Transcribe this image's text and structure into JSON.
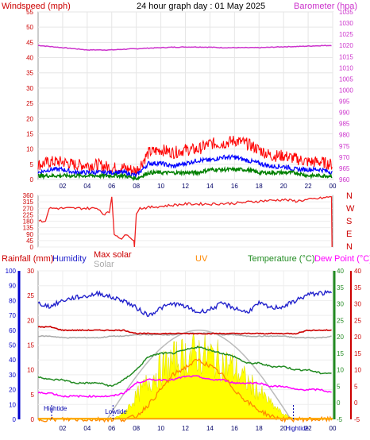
{
  "title": "24 hour graph day : 01 May 2025",
  "colors": {
    "wind": "#ff0000",
    "gust": "#0000ff",
    "avg": "#008000",
    "baro": "#cc33cc",
    "dir": "#ee2222",
    "rain": "#0000cc",
    "humidity": "#2222cc",
    "maxsolar": "#bbbbbb",
    "solar": "#ffff00",
    "uv": "#ff8800",
    "temp": "#228b22",
    "dew": "#ff00ff",
    "apptemp": "#cc0000"
  },
  "chart_data": [
    {
      "type": "line",
      "name": "wind-baro",
      "left_label": "Windspeed (mph)",
      "right_label": "Barometer (hpa)",
      "x_ticks": [
        "02",
        "04",
        "06",
        "08",
        "10",
        "12",
        "14",
        "16",
        "18",
        "20",
        "22",
        "00"
      ],
      "y_left": {
        "min": 0,
        "max": 55,
        "ticks": [
          0,
          5,
          10,
          15,
          20,
          25,
          30,
          35,
          40,
          45,
          50,
          55
        ]
      },
      "y_right": {
        "min": 960,
        "max": 1035,
        "ticks": [
          960,
          965,
          970,
          975,
          980,
          985,
          990,
          995,
          1000,
          1005,
          1010,
          1015,
          1020,
          1025,
          1030,
          1035
        ]
      },
      "hours": [
        0,
        1,
        2,
        3,
        4,
        5,
        6,
        7,
        8,
        9,
        10,
        11,
        12,
        13,
        14,
        15,
        16,
        17,
        18,
        19,
        20,
        21,
        22,
        23,
        24
      ],
      "gust_mph": [
        4,
        5,
        5,
        4,
        4,
        4,
        3,
        3,
        2,
        8,
        9,
        8,
        9,
        9,
        11,
        11,
        12,
        11,
        9,
        7,
        7,
        6,
        5,
        5,
        4
      ],
      "wind_mph": [
        2,
        3,
        3,
        2,
        2,
        2,
        2,
        2,
        1,
        5,
        5,
        4,
        5,
        6,
        6,
        7,
        7,
        6,
        5,
        4,
        4,
        3,
        3,
        3,
        2
      ],
      "avg_mph": [
        1,
        1,
        1,
        1,
        1,
        1,
        1,
        1,
        0,
        2,
        2,
        2,
        2,
        2,
        3,
        3,
        3,
        3,
        2,
        2,
        2,
        2,
        1,
        1,
        1
      ],
      "barometer_hpa": [
        1020.0,
        1019.5,
        1019.0,
        1018.5,
        1018.0,
        1018.0,
        1018.0,
        1018.3,
        1018.5,
        1018.8,
        1019.0,
        1019.2,
        1019.3,
        1019.3,
        1019.2,
        1019.0,
        1019.0,
        1019.0,
        1019.0,
        1019.2,
        1019.4,
        1019.5,
        1019.7,
        1019.9,
        1020.0
      ]
    },
    {
      "type": "line",
      "name": "wind-direction",
      "right_labels": [
        "N",
        "W",
        "S",
        "E",
        "N"
      ],
      "y_ticks": [
        0,
        45,
        90,
        135,
        180,
        225,
        270,
        315,
        360
      ],
      "direction_points": [
        [
          0.05,
          180
        ],
        [
          0.6,
          180
        ],
        [
          0.9,
          270
        ],
        [
          4.9,
          270
        ],
        [
          5.3,
          230
        ],
        [
          5.8,
          240
        ],
        [
          6.0,
          350
        ],
        [
          6.2,
          90
        ],
        [
          6.8,
          60
        ],
        [
          7.3,
          90
        ],
        [
          7.8,
          45
        ],
        [
          7.85,
          0
        ],
        [
          8.0,
          230
        ],
        [
          8.3,
          270
        ],
        [
          9.5,
          280
        ],
        [
          12,
          300
        ],
        [
          14,
          300
        ],
        [
          16,
          305
        ],
        [
          18,
          320
        ],
        [
          20,
          330
        ],
        [
          21,
          320
        ],
        [
          22,
          330
        ],
        [
          23,
          340
        ],
        [
          23.9,
          350
        ],
        [
          23.95,
          0
        ]
      ]
    },
    {
      "type": "line",
      "name": "temp-humidity-solar",
      "labels": {
        "rain": "Rainfall (mm)",
        "humidity": "Humidity",
        "maxsolar": "Max solar",
        "solar": "Solar",
        "uv": "UV",
        "temp": "Temperature (°C)",
        "dew": "Dew Point (°C)"
      },
      "x_ticks": [
        "02",
        "04",
        "06",
        "08",
        "10",
        "12",
        "14",
        "16",
        "18",
        "20",
        "22",
        "00"
      ],
      "humidity_axis": {
        "min": 0,
        "max": 100,
        "ticks": [
          0,
          10,
          20,
          30,
          40,
          50,
          60,
          70,
          80,
          90,
          100
        ]
      },
      "rain_axis": {
        "min": 0,
        "max": 30,
        "ticks": [
          0,
          5,
          10,
          15,
          20,
          25,
          30
        ]
      },
      "temp_axis": {
        "min": -5,
        "max": 40,
        "ticks": [
          -5,
          0,
          5,
          10,
          15,
          20,
          25,
          30,
          35,
          40
        ]
      },
      "tide_labels": {
        "high1": "Hightide",
        "low": "Lowtide",
        "high2": "Hightide"
      },
      "tide_hours": {
        "high1": 1.1,
        "low": 6.1,
        "high2": 20.8
      },
      "hours": [
        0,
        1,
        2,
        3,
        4,
        5,
        6,
        7,
        8,
        9,
        10,
        11,
        12,
        13,
        14,
        15,
        16,
        17,
        18,
        19,
        20,
        21,
        22,
        23,
        24
      ],
      "humidity_pct": [
        78,
        76,
        80,
        82,
        83,
        85,
        82,
        80,
        75,
        70,
        75,
        78,
        76,
        72,
        74,
        78,
        75,
        72,
        78,
        75,
        76,
        80,
        84,
        85,
        85
      ],
      "temp_c": [
        8,
        7,
        7,
        6,
        6,
        6,
        5,
        7,
        10,
        14,
        15,
        15,
        16,
        17,
        16,
        15,
        14,
        12,
        12,
        11,
        11,
        10,
        10,
        9,
        9
      ],
      "dew_c": [
        3,
        3,
        2,
        2,
        2,
        2,
        2,
        3,
        6,
        7,
        7,
        7,
        8,
        8,
        7,
        7,
        6,
        6,
        6,
        5,
        5,
        4,
        4,
        4,
        3
      ],
      "app_temp_c": [
        23,
        23,
        22,
        22,
        22,
        22,
        22,
        22,
        21,
        21,
        21,
        21,
        21,
        21,
        21,
        21,
        21,
        21,
        21,
        21,
        21,
        21,
        22,
        22,
        22
      ],
      "maxsolar_pct": [
        56,
        56,
        55,
        55,
        55,
        55,
        56,
        56,
        57,
        57,
        57,
        57,
        58,
        58,
        58,
        57,
        57,
        56,
        56,
        56,
        56,
        55,
        55,
        55,
        56
      ],
      "solar_pct": [
        0,
        0,
        0,
        0,
        0,
        0,
        0,
        5,
        18,
        30,
        40,
        46,
        50,
        52,
        50,
        45,
        40,
        30,
        22,
        12,
        4,
        0,
        0,
        0,
        0
      ],
      "uv_pct": [
        0,
        0,
        0,
        0,
        0,
        0,
        0,
        0,
        2,
        10,
        20,
        30,
        35,
        40,
        36,
        30,
        20,
        12,
        6,
        2,
        0,
        0,
        0,
        0,
        0
      ]
    }
  ]
}
